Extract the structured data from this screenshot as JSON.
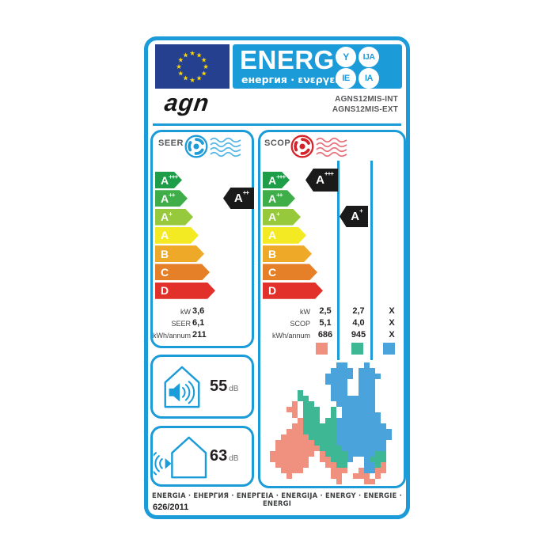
{
  "colors": {
    "accent_blue": "#1b9cd9",
    "flag_blue": "#24408f",
    "star_yellow": "#ffd800",
    "pointer_black": "#1a1a1a",
    "seer_fan": "#1e9cd8",
    "seer_wave": "#54b5e6",
    "scop_fan": "#d5232a",
    "scop_wave": "#e7707a"
  },
  "header": {
    "title": "ENERG",
    "subtitle": "енергия · ενεργεια",
    "badges": [
      "Y",
      "IJA",
      "IE",
      "IA"
    ],
    "brand": "agn",
    "models": [
      "AGNS12MIS-INT",
      "AGNS12MIS-EXT"
    ]
  },
  "efficiency_classes": [
    {
      "grade": "A",
      "plus": "+++",
      "color": "#1e9e48"
    },
    {
      "grade": "A",
      "plus": "++",
      "color": "#3fae49"
    },
    {
      "grade": "A",
      "plus": "+",
      "color": "#97c93d"
    },
    {
      "grade": "A",
      "plus": "",
      "color": "#f4ea24"
    },
    {
      "grade": "B",
      "plus": "",
      "color": "#efa928"
    },
    {
      "grade": "C",
      "plus": "",
      "color": "#e57f28"
    },
    {
      "grade": "D",
      "plus": "",
      "color": "#e2302a"
    }
  ],
  "seer": {
    "section_label": "SEER",
    "rated_class": {
      "grade": "A",
      "plus": "++"
    },
    "metrics": [
      {
        "label": "kW",
        "value": "3,6"
      },
      {
        "label": "SEER",
        "value": "6,1"
      },
      {
        "label": "kWh/annum",
        "value": "211"
      }
    ]
  },
  "scop": {
    "section_label": "SCOP",
    "rated_classes": [
      {
        "grade": "A",
        "plus": "+++"
      },
      {
        "grade": "A",
        "plus": "+"
      }
    ],
    "metrics": [
      {
        "label": "kW",
        "values": [
          "2,5",
          "2,7",
          "X"
        ]
      },
      {
        "label": "SCOP",
        "values": [
          "5,1",
          "4,0",
          "X"
        ]
      },
      {
        "label": "kWh/annum",
        "values": [
          "686",
          "945",
          "X"
        ]
      }
    ],
    "zone_colors": [
      "#f0907e",
      "#3eb795",
      "#4aa3db"
    ]
  },
  "noise": [
    {
      "value": "55",
      "unit": "dB"
    },
    {
      "value": "63",
      "unit": "dB"
    }
  ],
  "map": {
    "palette": {
      "S": "#f0907e",
      "G": "#3eb795",
      "B": "#4aa3db"
    },
    "rows": [
      "............BB...B......",
      "...........BBBB.BBB.....",
      "..........BBBBB.BBBB....",
      "..........BBBB..BBB.....",
      "...........BBB..BBB.....",
      ".....G.....BBB..BBB.....",
      ".....GG....BBBBBBBB.....",
      "....S.GG....BBBBBBB.....",
      "...SS.GGG..G.BBBBBB.....",
      "....S.GGG..G.BBBBBBB....",
      ".....SGGG.GGBBBBBBBB....",
      "....SSGGGGGGBBBBBBBBB...",
      "...SSSGGGGGGBBBBBBBBBB..",
      "..SSSSSGGGGGBBBBBBBBBB..",
      ".SSSSSSSGGGGBBBBBBBBB...",
      ".SSSSSSSSGGGGBBBBBBBB...",
      "SSSSSSSS.SGGGGBBBBBGG...",
      "SSSSSSS..SSGGGB..BGGG...",
      ".SSSSSS...SSGG...BBGS...",
      "..SSSS.....SSS..SBBSS...",
      "...S.......SS..SSS.S....",
      "............S....SS....."
    ]
  },
  "footer": {
    "words": "ENERGIA · ЕНЕРГИЯ · ΕΝΕΡΓΕΙΑ · ENERGIJA · ENERGY · ENERGIE · ENERGI",
    "regulation": "626/2011"
  }
}
